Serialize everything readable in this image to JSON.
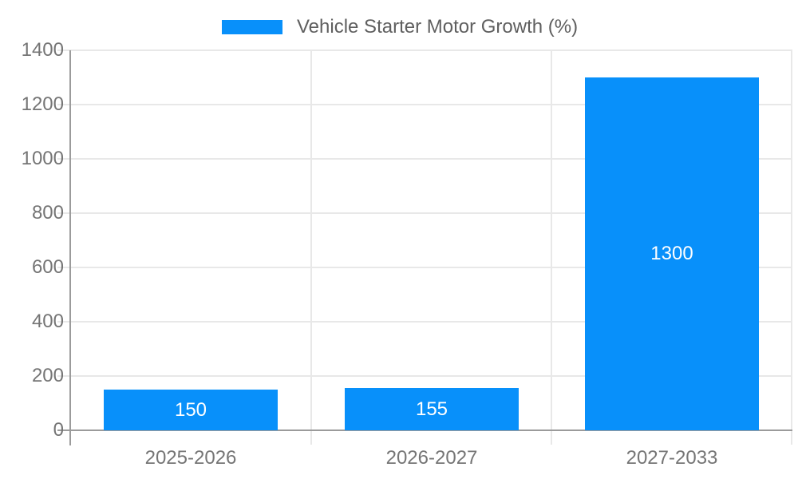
{
  "legend": {
    "label": "Vehicle Starter Motor Growth (%)"
  },
  "colors": {
    "bar": "#0890fa",
    "grid": "#e8e8e8",
    "axis": "#9b9b9b",
    "tick_label": "#757575",
    "legend_text": "#5f5f5f",
    "bar_label": "#ffffff",
    "background": "#ffffff"
  },
  "chart_data": {
    "type": "bar",
    "title": "",
    "xlabel": "",
    "ylabel": "",
    "categories": [
      "2025-2026",
      "2026-2027",
      "2027-2033"
    ],
    "series": [
      {
        "name": "Vehicle Starter Motor Growth (%)",
        "values": [
          150,
          155,
          1300
        ]
      }
    ],
    "bar_labels": [
      "150",
      "155",
      "1300"
    ],
    "ylim": [
      0,
      1400
    ],
    "yticks": [
      0,
      200,
      400,
      600,
      800,
      1000,
      1200,
      1400
    ],
    "grid": true,
    "legend_position": "top-center",
    "bar_label_position": "inside-center"
  }
}
